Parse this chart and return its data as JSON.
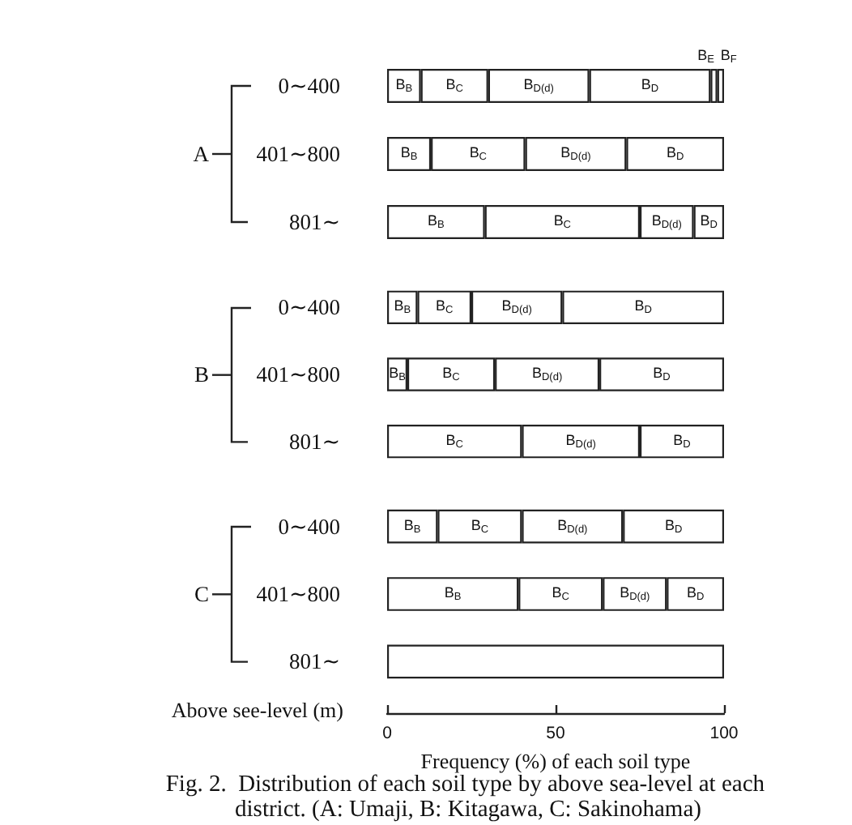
{
  "chart_data": [
    {
      "type": "bar",
      "orientation": "horizontal",
      "stacked": true,
      "ylabel": "A",
      "categories": [
        "0∼400",
        "401∼800",
        "801∼"
      ],
      "xlim": [
        0,
        100
      ],
      "tick_labels": "y",
      "series": [
        {
          "name": "B$_{B}$",
          "color": "#ffffff",
          "values": [
            10,
            13,
            29
          ]
        },
        {
          "name": "B$_{C}$",
          "color": "#ffffff",
          "values": [
            20,
            28,
            46
          ]
        },
        {
          "name": "B$_{D(d)}$",
          "color": "#ffffff",
          "values": [
            30,
            30,
            16
          ]
        },
        {
          "name": "B$_{D}$",
          "color": "#ffffff",
          "values": [
            36,
            29,
            9
          ]
        },
        {
          "name": "B$_{E}$",
          "color": "#ffffff",
          "values": [
            2,
            null,
            null
          ]
        },
        {
          "name": "B$_{F}$",
          "color": "#ffffff",
          "values": [
            2,
            null,
            null
          ]
        }
      ]
    },
    {
      "type": "bar",
      "orientation": "horizontal",
      "stacked": true,
      "ylabel": "B",
      "categories": [
        "0∼400",
        "401∼800",
        "801∼"
      ],
      "xlim": [
        0,
        100
      ],
      "tick_labels": "y",
      "series": [
        {
          "name": "B$_{B}$",
          "color": "#ffffff",
          "values": [
            9,
            6,
            null
          ]
        },
        {
          "name": "B$_{C}$",
          "color": "#ffffff",
          "values": [
            16,
            26,
            40
          ]
        },
        {
          "name": "B$_{D(d)}$",
          "color": "#ffffff",
          "values": [
            27,
            31,
            35
          ]
        },
        {
          "name": "B$_{D}$",
          "color": "#ffffff",
          "values": [
            48,
            37,
            25
          ]
        }
      ]
    },
    {
      "type": "bar",
      "orientation": "horizontal",
      "stacked": true,
      "ylabel": "C",
      "categories": [
        "0∼400",
        "401∼800",
        "801∼"
      ],
      "xlim": [
        0,
        100
      ],
      "xticks": [
        0,
        50,
        100
      ],
      "xlabel": "Frequency (%) of each soil type",
      "annotations": [
        "Above see-level (m)",
        "Fig. 2.  Distribution of each soil type by above sea-level at each district. (A: Umaji, B: Kitagawa, C: Sakinohama)"
      ],
      "series": [
        {
          "name": "B$_{B}$",
          "color": "#ffffff",
          "values": [
            15,
            39,
            null
          ]
        },
        {
          "name": "B$_{C}$",
          "color": "#ffffff",
          "values": [
            25,
            25,
            null
          ]
        },
        {
          "name": "B$_{D(d)}$",
          "color": "#ffffff",
          "values": [
            30,
            19,
            null
          ]
        },
        {
          "name": "B$_{D}$",
          "color": "#ffffff",
          "values": [
            30,
            17,
            null
          ]
        },
        {
          "color": "#ffffff",
          "values": [
            null,
            null,
            100
          ]
        }
      ]
    }
  ]
}
